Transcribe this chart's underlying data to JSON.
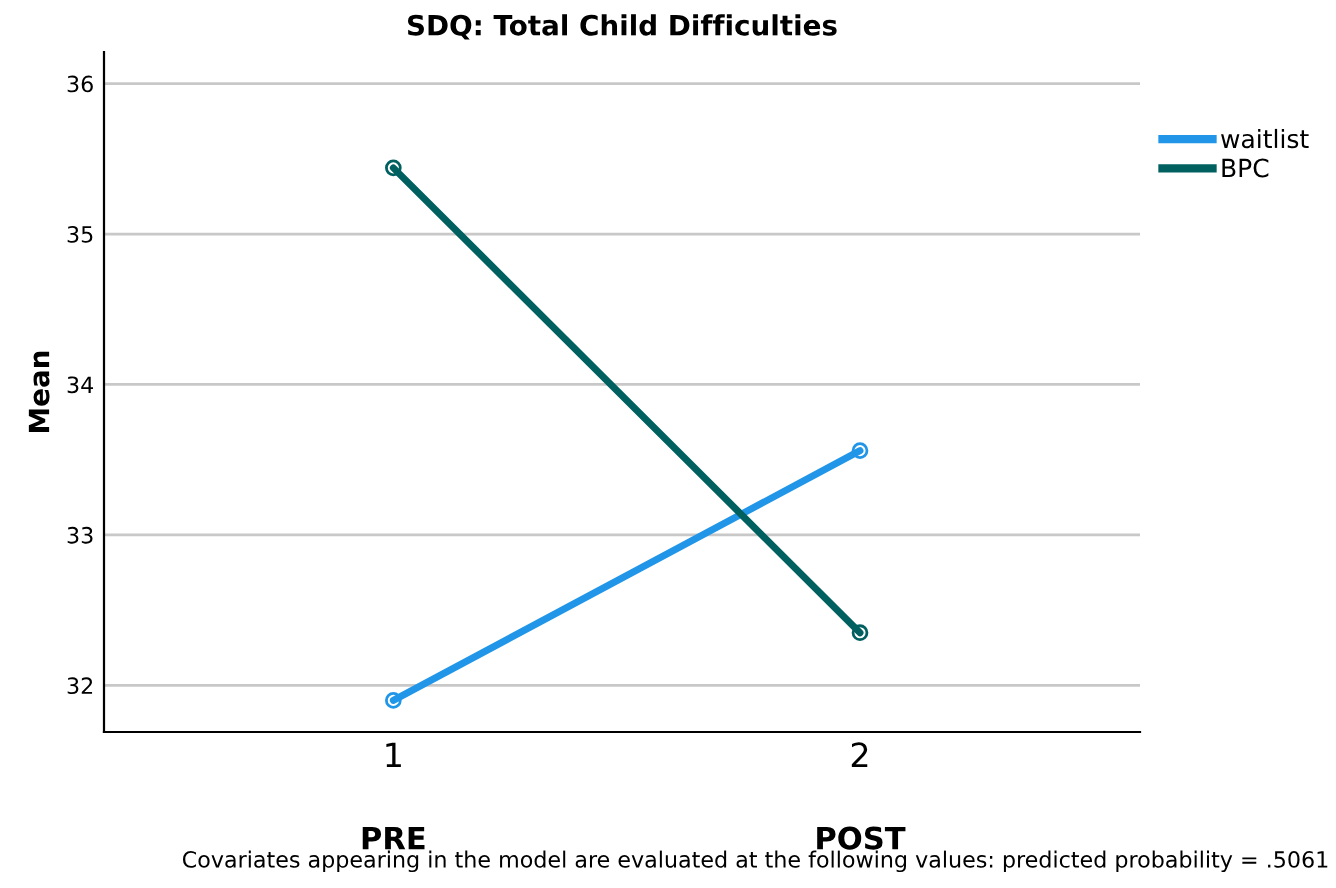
{
  "chart_data": {
    "type": "line",
    "title": "SDQ: Total Child Difficulties",
    "ylabel": "Mean",
    "categories": [
      "1",
      "2"
    ],
    "series": [
      {
        "name": "waitlist",
        "color": "#2196e8",
        "values": [
          31.9,
          33.56
        ]
      },
      {
        "name": "BPC",
        "color": "#006060",
        "values": [
          35.44,
          32.35
        ]
      }
    ],
    "ylim": [
      31.69,
      36.21
    ],
    "yticks": [
      32,
      33,
      34,
      35,
      36
    ],
    "grid": "y",
    "legend": "top right",
    "marker": "circle",
    "annotations": [
      "PRE",
      "POST",
      "Covariates appearing in the model are evaluated at the following values: predicted probability = .5061"
    ]
  }
}
